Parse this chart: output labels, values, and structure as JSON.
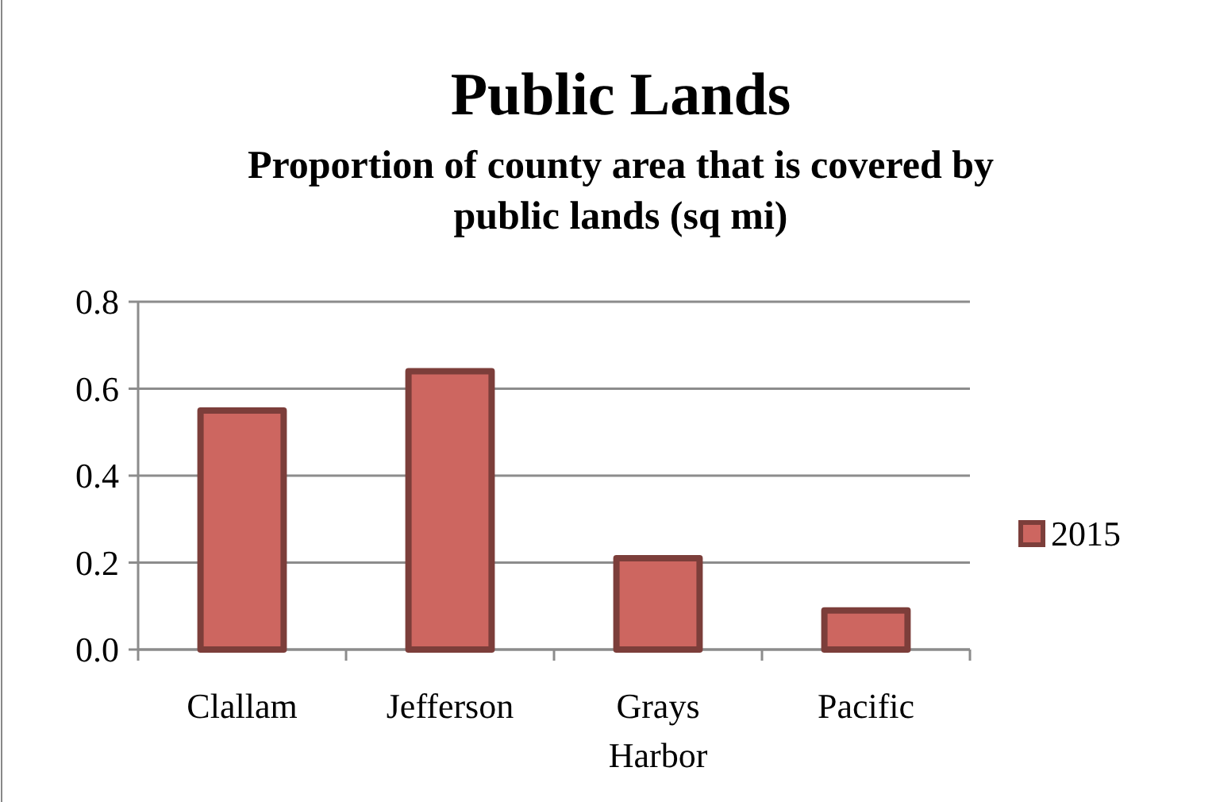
{
  "chart_data": {
    "type": "bar",
    "title": "Public Lands",
    "subtitle": "Proportion of county area that is covered by public lands (sq mi)",
    "categories": [
      "Clallam",
      "Jefferson",
      "Grays Harbor",
      "Pacific"
    ],
    "series": [
      {
        "name": "2015",
        "color": "#cd6660",
        "values": [
          0.55,
          0.64,
          0.21,
          0.09
        ]
      }
    ],
    "ylim": [
      0,
      0.8
    ],
    "yticks": [
      {
        "value": 0,
        "label": "0.0"
      },
      {
        "value": 0.2,
        "label": "0.2"
      },
      {
        "value": 0.4,
        "label": "0.4"
      },
      {
        "value": 0.6,
        "label": "0.6"
      },
      {
        "value": 0.8,
        "label": "0.8"
      }
    ],
    "grid": "y",
    "legend": "right"
  }
}
